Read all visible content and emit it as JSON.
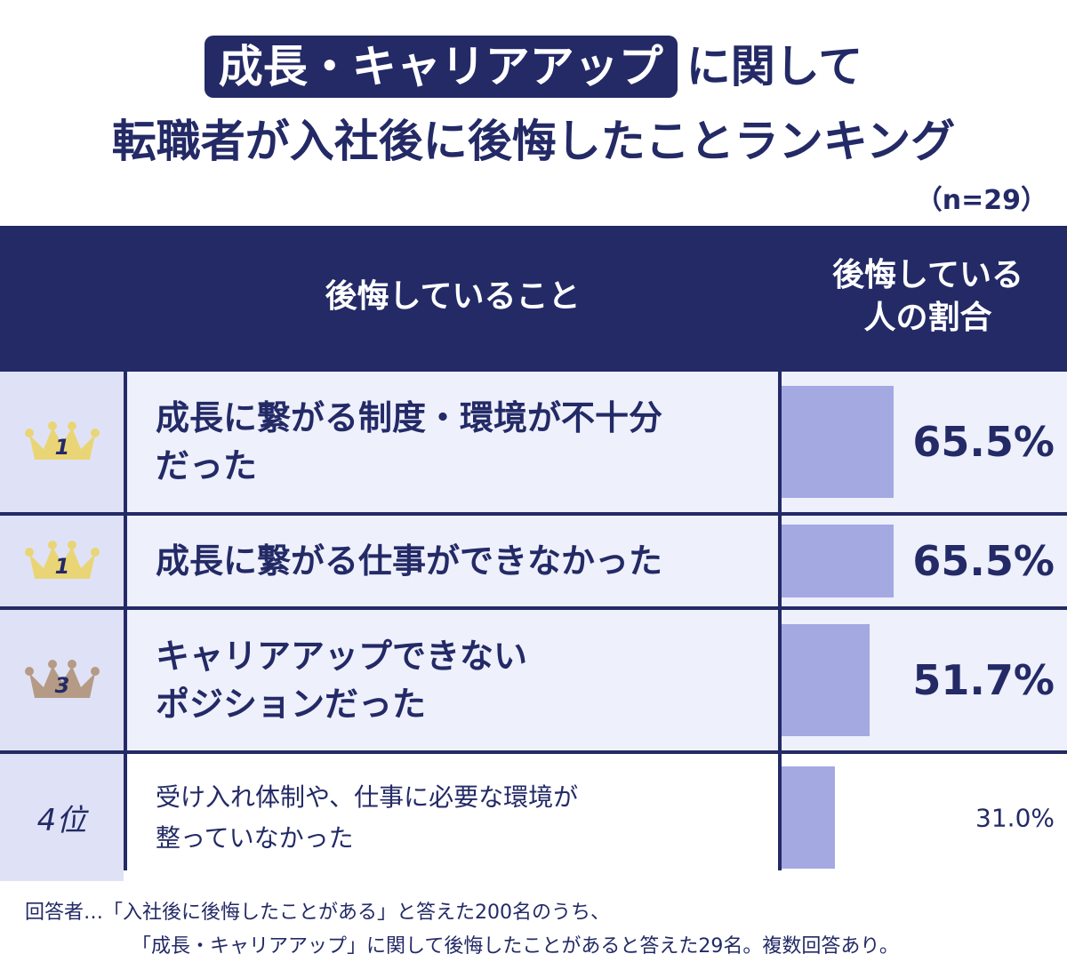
{
  "title": {
    "highlight": "成長・キャリアアップ",
    "line1_rest": "に関して",
    "line2": "転職者が入社後に後悔したことランキング"
  },
  "sample_note": "（n=29）",
  "colors": {
    "navy": "#232a66",
    "bar": "#a4a9e2",
    "row_bg": "#eef0fb",
    "rank_bg": "#dfe2f6",
    "gold_crown": "#e9d576",
    "bronze_crown": "#b59a86"
  },
  "table": {
    "header_item": "後悔していること",
    "header_pct_line1": "後悔している",
    "header_pct_line2": "人の割合"
  },
  "chart_data": {
    "type": "bar",
    "orientation": "horizontal",
    "rows": [
      {
        "rank": "1",
        "crown": "gold-crown-icon",
        "label_line1": "成長に繋がる制度・環境が不十分",
        "label_line2": "だった",
        "value": 65.5,
        "value_text": "65.5%"
      },
      {
        "rank": "1",
        "crown": "gold-crown-icon",
        "label_line1": "成長に繋がる仕事ができなかった",
        "label_line2": "",
        "value": 65.5,
        "value_text": "65.5%"
      },
      {
        "rank": "3",
        "crown": "bronze-crown-icon",
        "label_line1": "キャリアアップできない",
        "label_line2": "ポジションだった",
        "value": 51.7,
        "value_text": "51.7%"
      },
      {
        "rank": "4位",
        "crown": "",
        "label_line1": "受け入れ体制や、仕事に必要な環境が",
        "label_line2": "整っていなかった",
        "value": 31.0,
        "value_text": "31.0%"
      }
    ]
  },
  "footnote": {
    "line1": "回答者…「入社後に後悔したことがある」と答えた200名のうち、",
    "line2": "「成長・キャリアアップ」に関して後悔したことがあると答えた29名。複数回答あり。"
  }
}
